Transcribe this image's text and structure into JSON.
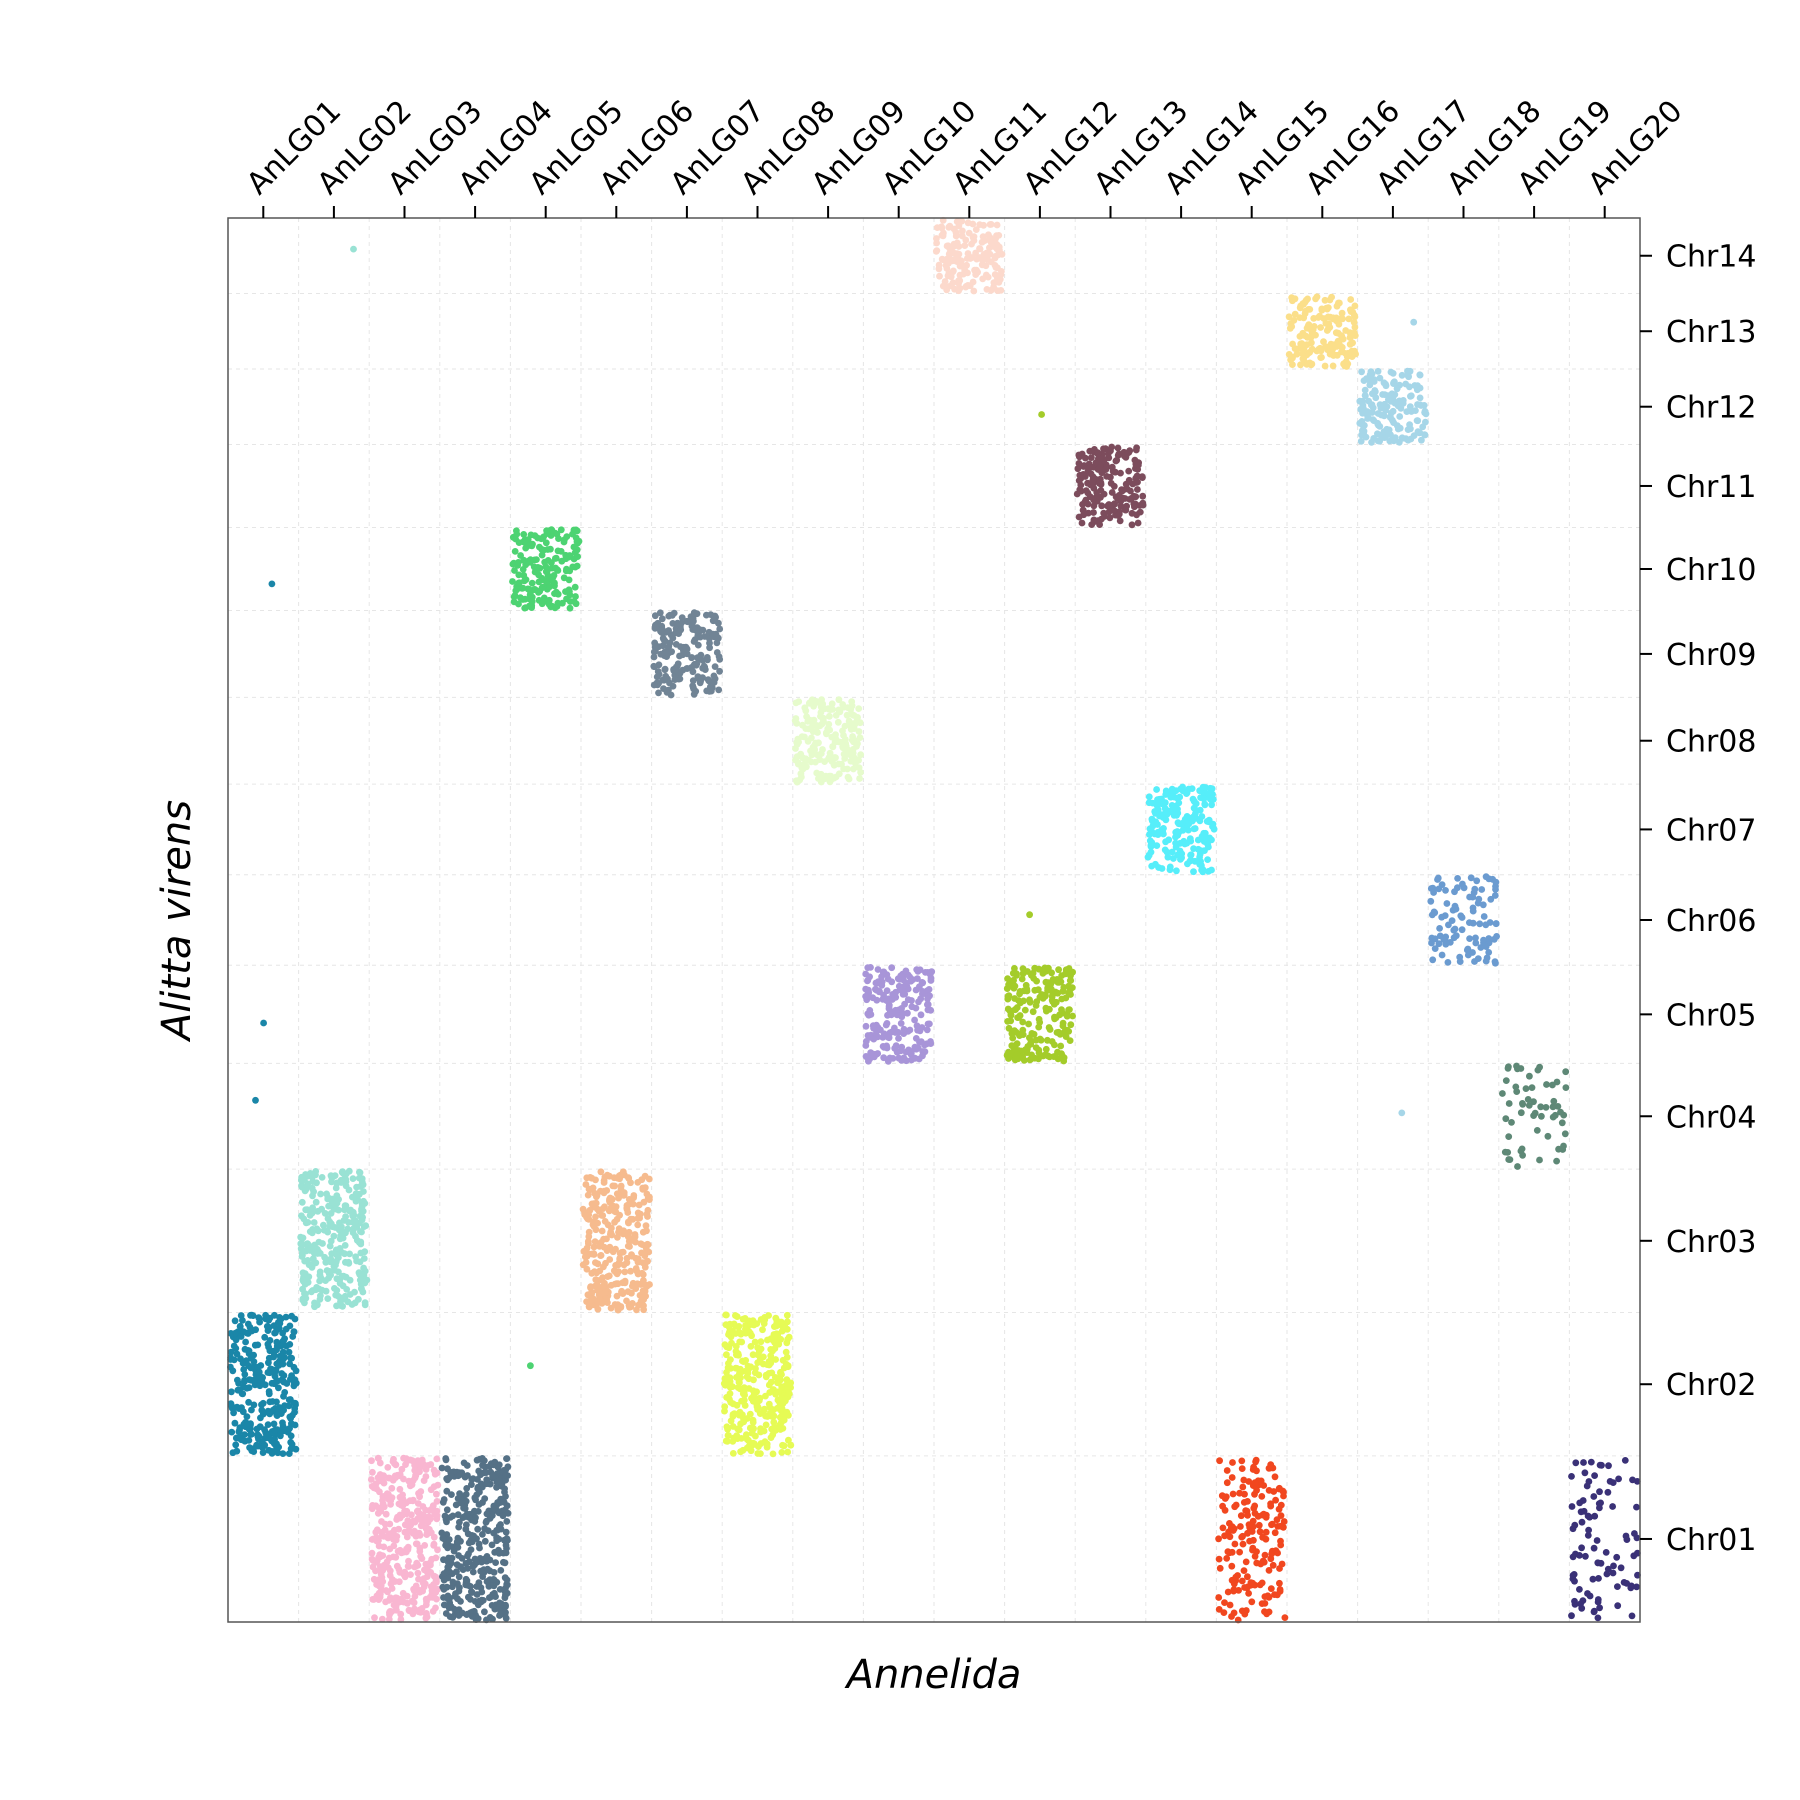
{
  "chart_data": {
    "type": "scatter",
    "xlabel": "Annelida",
    "ylabel": "Alitta virens",
    "x_categories": [
      "AnLG01",
      "AnLG02",
      "AnLG03",
      "AnLG04",
      "AnLG05",
      "AnLG06",
      "AnLG07",
      "AnLG08",
      "AnLG09",
      "AnLG10",
      "AnLG11",
      "AnLG12",
      "AnLG13",
      "AnLG14",
      "AnLG15",
      "AnLG16",
      "AnLG17",
      "AnLG18",
      "AnLG19",
      "AnLG20"
    ],
    "y_categories": [
      "Chr01",
      "Chr02",
      "Chr03",
      "Chr04",
      "Chr05",
      "Chr06",
      "Chr07",
      "Chr08",
      "Chr09",
      "Chr10",
      "Chr11",
      "Chr12",
      "Chr13",
      "Chr14"
    ],
    "grid": true,
    "tick_positions": "x axis ticks on top, y axis ticks on right",
    "blocks": [
      {
        "x": "AnLG01",
        "y": "Chr02",
        "color": "#1a86a8",
        "density": "high"
      },
      {
        "x": "AnLG02",
        "y": "Chr03",
        "color": "#99e2d4",
        "density": "high"
      },
      {
        "x": "AnLG03",
        "y": "Chr01",
        "color": "#f9b6d1",
        "density": "high"
      },
      {
        "x": "AnLG04",
        "y": "Chr01",
        "color": "#557186",
        "density": "high"
      },
      {
        "x": "AnLG05",
        "y": "Chr10",
        "color": "#4dd372",
        "density": "high"
      },
      {
        "x": "AnLG06",
        "y": "Chr03",
        "color": "#f6bb8e",
        "density": "high"
      },
      {
        "x": "AnLG07",
        "y": "Chr09",
        "color": "#718495",
        "density": "high"
      },
      {
        "x": "AnLG08",
        "y": "Chr02",
        "color": "#e6fb55",
        "density": "high"
      },
      {
        "x": "AnLG09",
        "y": "Chr08",
        "color": "#e6fbcc",
        "density": "high"
      },
      {
        "x": "AnLG10",
        "y": "Chr05",
        "color": "#a895d8",
        "density": "high"
      },
      {
        "x": "AnLG11",
        "y": "Chr14",
        "color": "#fcd9cc",
        "density": "high"
      },
      {
        "x": "AnLG12",
        "y": "Chr05",
        "color": "#a4cc2a",
        "density": "high"
      },
      {
        "x": "AnLG13",
        "y": "Chr11",
        "color": "#7c4c5c",
        "density": "high"
      },
      {
        "x": "AnLG14",
        "y": "Chr07",
        "color": "#56eefa",
        "density": "high"
      },
      {
        "x": "AnLG15",
        "y": "Chr01",
        "color": "#f1471f",
        "density": "medium"
      },
      {
        "x": "AnLG16",
        "y": "Chr13",
        "color": "#fbdf8a",
        "density": "high"
      },
      {
        "x": "AnLG17",
        "y": "Chr12",
        "color": "#a6d6e8",
        "density": "high"
      },
      {
        "x": "AnLG18",
        "y": "Chr06",
        "color": "#6b9bd0",
        "density": "medium"
      },
      {
        "x": "AnLG19",
        "y": "Chr04",
        "color": "#5e8876",
        "density": "low"
      },
      {
        "x": "AnLG20",
        "y": "Chr01",
        "color": "#3a3177",
        "density": "low"
      }
    ],
    "outliers": [
      {
        "x": "AnLG02",
        "y": "Chr14",
        "color": "#99e2d4"
      },
      {
        "x": "AnLG01",
        "y": "Chr10",
        "color": "#1a86a8"
      },
      {
        "x": "AnLG01",
        "y": "Chr05",
        "color": "#1a86a8"
      },
      {
        "x": "AnLG01",
        "y": "Chr04",
        "color": "#1a86a8"
      },
      {
        "x": "AnLG05",
        "y": "Chr02",
        "color": "#4dd372"
      },
      {
        "x": "AnLG12",
        "y": "Chr12",
        "color": "#a4cc2a"
      },
      {
        "x": "AnLG12",
        "y": "Chr06",
        "color": "#a4cc2a"
      },
      {
        "x": "AnLG17",
        "y": "Chr13",
        "color": "#a6d6e8"
      },
      {
        "x": "AnLG17",
        "y": "Chr04",
        "color": "#a6d6e8"
      }
    ]
  }
}
